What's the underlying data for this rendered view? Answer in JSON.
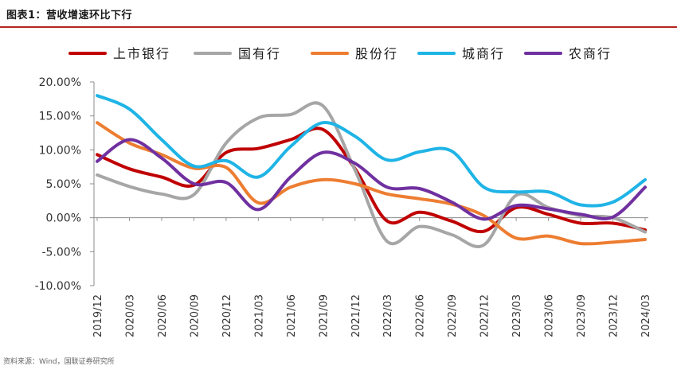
{
  "figure": {
    "title": "图表1：营收增速环比下行",
    "source_text": "资料来源：Wind，国联证券研究所"
  },
  "colors": {
    "上市银行": "#c00000",
    "国有行": "#a6a6a6",
    "股份行": "#ed7d31",
    "城商行": "#1fb4e6",
    "农商行": "#7030a0",
    "title_rule": "#b3261e"
  },
  "chart_data": {
    "type": "line",
    "title": "图表1：营收增速环比下行",
    "xlabel": "",
    "ylabel": "",
    "ylim": [
      -10,
      20
    ],
    "yticks": [
      -10,
      -5,
      0,
      5,
      10,
      15,
      20
    ],
    "ytick_labels": [
      "-10.00%",
      "-5.00%",
      "0.00%",
      "5.00%",
      "10.00%",
      "15.00%",
      "20.00%"
    ],
    "grid": false,
    "legend_position": "top",
    "categories": [
      "2019/12",
      "2020/03",
      "2020/06",
      "2020/09",
      "2020/12",
      "2021/03",
      "2021/06",
      "2021/09",
      "2021/12",
      "2022/03",
      "2022/06",
      "2022/09",
      "2022/12",
      "2023/03",
      "2023/06",
      "2023/09",
      "2023/12",
      "2024/03"
    ],
    "series": [
      {
        "name": "上市银行",
        "values": [
          9.3,
          7.2,
          6.0,
          4.8,
          9.6,
          10.2,
          11.5,
          13.0,
          7.2,
          -0.5,
          0.8,
          -0.5,
          -2.0,
          1.5,
          0.5,
          -0.8,
          -0.8,
          -1.8
        ]
      },
      {
        "name": "国有行",
        "values": [
          6.3,
          4.6,
          3.5,
          3.4,
          11.0,
          14.7,
          15.2,
          16.5,
          7.0,
          -3.5,
          -1.3,
          -2.5,
          -4.0,
          3.3,
          1.5,
          0.3,
          0.0,
          -2.1
        ]
      },
      {
        "name": "股份行",
        "values": [
          14.0,
          11.0,
          9.3,
          7.3,
          7.4,
          2.2,
          4.5,
          5.6,
          5.0,
          3.5,
          2.8,
          2.0,
          0.3,
          -3.0,
          -2.7,
          -3.8,
          -3.6,
          -3.2
        ]
      },
      {
        "name": "城商行",
        "values": [
          18.0,
          16.0,
          11.5,
          7.6,
          8.4,
          6.0,
          10.5,
          14.0,
          12.0,
          8.5,
          9.7,
          9.8,
          4.5,
          3.8,
          3.8,
          1.9,
          2.3,
          5.6
        ]
      },
      {
        "name": "农商行",
        "values": [
          8.3,
          11.5,
          8.8,
          5.0,
          5.2,
          1.2,
          6.0,
          9.6,
          8.0,
          4.5,
          4.3,
          2.3,
          -0.2,
          1.8,
          1.3,
          0.5,
          0.1,
          4.5
        ]
      }
    ]
  }
}
